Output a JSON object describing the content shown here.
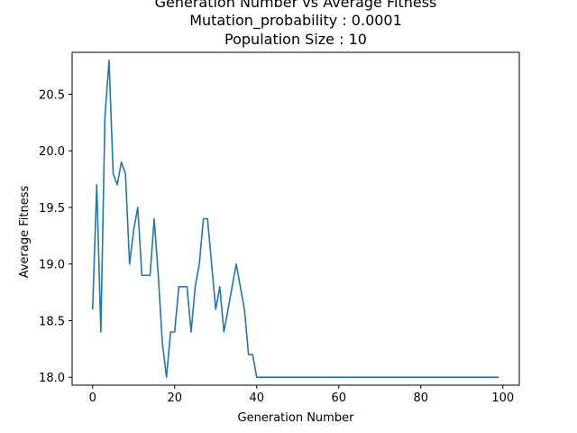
{
  "chart_data": {
    "type": "line",
    "title": "Generation Number vs Average Fitness",
    "subtitle_lines": [
      "Mutation_probability : 0.0001",
      "Population Size : 10"
    ],
    "xlabel": "Generation Number",
    "ylabel": "Average Fitness",
    "xlim": [
      -5,
      104
    ],
    "ylim": [
      17.93,
      20.87
    ],
    "x_ticks": [
      0,
      20,
      40,
      60,
      80,
      100
    ],
    "x_tick_labels": [
      "0",
      "20",
      "40",
      "60",
      "80",
      "100"
    ],
    "y_ticks": [
      18.0,
      18.5,
      19.0,
      19.5,
      20.0,
      20.5
    ],
    "y_tick_labels": [
      "18.0",
      "18.5",
      "19.0",
      "19.5",
      "20.0",
      "20.5"
    ],
    "grid": false,
    "series": [
      {
        "color": "#1f77b4",
        "x": [
          0,
          1,
          2,
          3,
          4,
          5,
          6,
          7,
          8,
          9,
          10,
          11,
          12,
          13,
          14,
          15,
          16,
          17,
          18,
          19,
          20,
          21,
          22,
          23,
          24,
          25,
          26,
          27,
          28,
          29,
          30,
          31,
          32,
          33,
          34,
          35,
          36,
          37,
          38,
          39,
          40,
          41,
          42,
          43,
          44,
          45,
          46,
          47,
          48,
          49,
          50,
          51,
          52,
          53,
          54,
          55,
          56,
          57,
          58,
          59,
          60,
          61,
          62,
          63,
          64,
          65,
          66,
          67,
          68,
          69,
          70,
          71,
          72,
          73,
          74,
          75,
          76,
          77,
          78,
          79,
          80,
          81,
          82,
          83,
          84,
          85,
          86,
          87,
          88,
          89,
          90,
          91,
          92,
          93,
          94,
          95,
          96,
          97,
          98,
          99
        ],
        "y": [
          18.6,
          19.7,
          18.4,
          20.3,
          20.8,
          19.8,
          19.7,
          19.9,
          19.8,
          19.0,
          19.3,
          19.5,
          18.9,
          18.9,
          18.9,
          19.4,
          18.9,
          18.3,
          18.0,
          18.4,
          18.4,
          18.8,
          18.8,
          18.8,
          18.4,
          18.8,
          19.0,
          19.4,
          19.4,
          19.0,
          18.6,
          18.8,
          18.4,
          18.6,
          18.8,
          19.0,
          18.8,
          18.6,
          18.2,
          18.2,
          18.0,
          18.0,
          18.0,
          18.0,
          18.0,
          18.0,
          18.0,
          18.0,
          18.0,
          18.0,
          18.0,
          18.0,
          18.0,
          18.0,
          18.0,
          18.0,
          18.0,
          18.0,
          18.0,
          18.0,
          18.0,
          18.0,
          18.0,
          18.0,
          18.0,
          18.0,
          18.0,
          18.0,
          18.0,
          18.0,
          18.0,
          18.0,
          18.0,
          18.0,
          18.0,
          18.0,
          18.0,
          18.0,
          18.0,
          18.0,
          18.0,
          18.0,
          18.0,
          18.0,
          18.0,
          18.0,
          18.0,
          18.0,
          18.0,
          18.0,
          18.0,
          18.0,
          18.0,
          18.0,
          18.0,
          18.0,
          18.0,
          18.0,
          18.0,
          18.0
        ]
      }
    ]
  }
}
